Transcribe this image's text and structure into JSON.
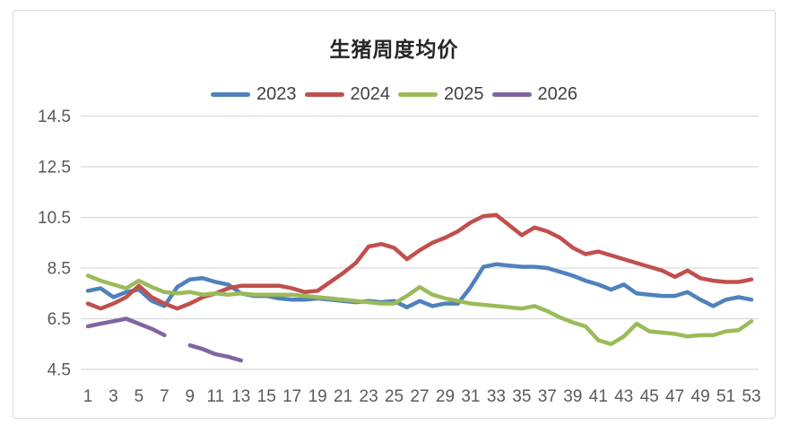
{
  "chart_data": {
    "type": "line",
    "title": "生猪周度均价",
    "x_axis": "week-of-year",
    "x_tick_labels": [
      1,
      3,
      5,
      7,
      9,
      11,
      13,
      15,
      17,
      19,
      21,
      23,
      25,
      27,
      29,
      31,
      33,
      35,
      37,
      39,
      41,
      43,
      45,
      47,
      49,
      51,
      53
    ],
    "y_ticks": [
      4.5,
      6.5,
      8.5,
      10.5,
      12.5,
      14.5
    ],
    "y_range": [
      4.5,
      14.5
    ],
    "x_range": [
      1,
      53
    ],
    "grid": "horizontal",
    "legend_position": "top",
    "series": [
      {
        "name": "2023",
        "color": "#4F81BD",
        "values": [
          7.6,
          7.7,
          7.35,
          7.55,
          7.65,
          7.2,
          7.0,
          7.75,
          8.05,
          8.1,
          7.95,
          7.85,
          7.5,
          7.4,
          7.4,
          7.3,
          7.25,
          7.25,
          7.3,
          7.25,
          7.2,
          7.15,
          7.2,
          7.15,
          7.2,
          6.95,
          7.2,
          7.0,
          7.1,
          7.1,
          7.75,
          8.55,
          8.65,
          8.6,
          8.55,
          8.55,
          8.5,
          8.35,
          8.2,
          8.0,
          7.85,
          7.65,
          7.85,
          7.5,
          7.45,
          7.4,
          7.4,
          7.55,
          7.25,
          7.0,
          7.25,
          7.35,
          7.25
        ]
      },
      {
        "name": "2024",
        "color": "#C0504D",
        "values": [
          7.1,
          6.9,
          7.1,
          7.35,
          7.8,
          7.35,
          7.1,
          6.9,
          7.1,
          7.35,
          7.5,
          7.7,
          7.8,
          7.8,
          7.8,
          7.8,
          7.7,
          7.55,
          7.6,
          7.95,
          8.3,
          8.7,
          9.35,
          9.45,
          9.3,
          8.85,
          9.2,
          9.5,
          9.7,
          9.95,
          10.3,
          10.55,
          10.6,
          10.2,
          9.8,
          10.1,
          9.95,
          9.7,
          9.3,
          9.05,
          9.15,
          9.0,
          8.85,
          8.7,
          8.55,
          8.4,
          8.15,
          8.4,
          8.1,
          8.0,
          7.95,
          7.95,
          8.05
        ]
      },
      {
        "name": "2025",
        "color": "#9BBB59",
        "values": [
          8.2,
          8.0,
          7.85,
          7.7,
          8.0,
          7.75,
          7.55,
          7.5,
          7.55,
          7.45,
          7.5,
          7.45,
          7.5,
          7.45,
          7.45,
          7.45,
          7.45,
          7.4,
          7.35,
          7.3,
          7.25,
          7.2,
          7.15,
          7.1,
          7.1,
          7.4,
          7.75,
          7.45,
          7.3,
          7.2,
          7.1,
          7.05,
          7.0,
          6.95,
          6.9,
          7.0,
          6.8,
          6.55,
          6.35,
          6.2,
          5.65,
          5.5,
          5.8,
          6.3,
          6.0,
          5.95,
          5.9,
          5.8,
          5.85,
          5.85,
          6.0,
          6.05,
          6.4
        ]
      },
      {
        "name": "2026",
        "color": "#8064A2",
        "values": [
          6.2,
          6.3,
          6.4,
          6.5,
          6.3,
          6.1,
          5.85,
          null,
          5.45,
          5.3,
          5.1,
          5.0,
          4.85
        ]
      }
    ],
    "colors": {
      "gridline": "#d9d9d9",
      "axis_text": "#595959",
      "legend_text": "#404040",
      "title_text": "#262626",
      "card_border": "#d9d9d9",
      "background": "#ffffff"
    }
  }
}
